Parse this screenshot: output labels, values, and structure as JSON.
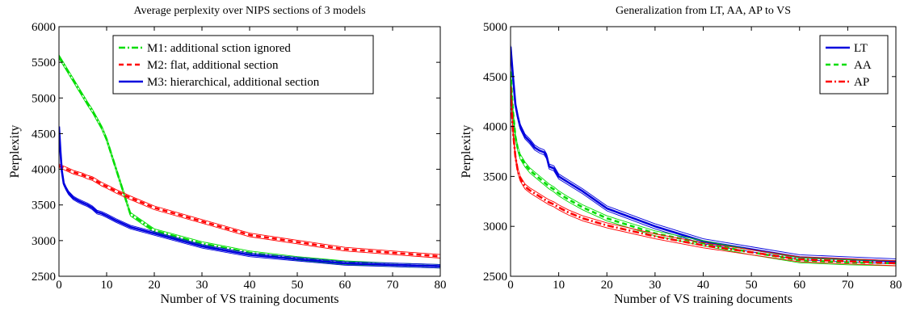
{
  "chart_data": [
    {
      "type": "line",
      "title": "Average perplexity over NIPS sections of 3 models",
      "xlabel": "Number of VS training documents",
      "ylabel": "Perplexity",
      "xlim": [
        0,
        80
      ],
      "ylim": [
        2500,
        6000
      ],
      "xticks": [
        0,
        10,
        20,
        30,
        40,
        50,
        60,
        70,
        80
      ],
      "yticks": [
        2500,
        3000,
        3500,
        4000,
        4500,
        5000,
        5500,
        6000
      ],
      "grid": false,
      "legend_position": "top-right",
      "series": [
        {
          "name": "M1: additional sction ignored",
          "color": "#00dd00",
          "style": "dashdot",
          "x": [
            0,
            1,
            2,
            3,
            4,
            5,
            6,
            7,
            8,
            9,
            10,
            12,
            15,
            20,
            30,
            40,
            50,
            60,
            70,
            80
          ],
          "y": [
            5580,
            5470,
            5360,
            5250,
            5140,
            5030,
            4920,
            4820,
            4700,
            4580,
            4420,
            4000,
            3370,
            3140,
            2960,
            2830,
            2750,
            2690,
            2660,
            2640
          ]
        },
        {
          "name": "M2: flat, additional section",
          "color": "#ff0000",
          "style": "dashed",
          "x": [
            0,
            1,
            2,
            3,
            4,
            5,
            6,
            7,
            8,
            9,
            10,
            12,
            15,
            20,
            30,
            40,
            50,
            60,
            70,
            80
          ],
          "y": [
            4050,
            4020,
            3990,
            3960,
            3940,
            3920,
            3890,
            3870,
            3830,
            3790,
            3760,
            3690,
            3600,
            3460,
            3270,
            3080,
            2980,
            2880,
            2830,
            2780
          ]
        },
        {
          "name": "M3: hierarchical, additional section",
          "color": "#0000dd",
          "style": "solid",
          "x": [
            0,
            0.3,
            0.6,
            1,
            1.5,
            2,
            3,
            4,
            5,
            6,
            7,
            8,
            9,
            10,
            12,
            15,
            20,
            30,
            40,
            50,
            60,
            70,
            80
          ],
          "y": [
            4600,
            4250,
            3980,
            3800,
            3730,
            3670,
            3600,
            3560,
            3530,
            3500,
            3460,
            3400,
            3380,
            3350,
            3280,
            3190,
            3100,
            2920,
            2800,
            2740,
            2680,
            2660,
            2640
          ]
        }
      ]
    },
    {
      "type": "line",
      "title": "Generalization from LT, AA, AP to VS",
      "xlabel": "Number of VS training documents",
      "ylabel": "Perplexity",
      "xlim": [
        0,
        80
      ],
      "ylim": [
        2500,
        5000
      ],
      "xticks": [
        0,
        10,
        20,
        30,
        40,
        50,
        60,
        70,
        80
      ],
      "yticks": [
        2500,
        3000,
        3500,
        4000,
        4500,
        5000
      ],
      "grid": false,
      "legend_position": "top-right",
      "series": [
        {
          "name": "LT",
          "color": "#0000dd",
          "style": "solid",
          "x": [
            0,
            0.5,
            1,
            1.5,
            2,
            3,
            4,
            5,
            6,
            7,
            7.5,
            8,
            9,
            10,
            12,
            15,
            20,
            30,
            40,
            50,
            60,
            70,
            80
          ],
          "y": [
            4800,
            4500,
            4220,
            4100,
            4000,
            3900,
            3850,
            3790,
            3760,
            3740,
            3700,
            3600,
            3580,
            3500,
            3440,
            3350,
            3180,
            3000,
            2850,
            2770,
            2690,
            2670,
            2650
          ]
        },
        {
          "name": "AA",
          "color": "#00dd00",
          "style": "dashed",
          "x": [
            0,
            0.5,
            1,
            1.5,
            2,
            3,
            4,
            5,
            6,
            7,
            8,
            9,
            10,
            12,
            15,
            20,
            30,
            40,
            50,
            60,
            70,
            80
          ],
          "y": [
            4550,
            4150,
            3900,
            3780,
            3700,
            3620,
            3560,
            3520,
            3480,
            3440,
            3400,
            3370,
            3330,
            3270,
            3190,
            3080,
            2930,
            2830,
            2740,
            2660,
            2640,
            2630
          ]
        },
        {
          "name": "AP",
          "color": "#ff0000",
          "style": "dashdot",
          "x": [
            0,
            0.5,
            1,
            1.5,
            2,
            3,
            4,
            5,
            6,
            7,
            8,
            9,
            10,
            12,
            15,
            20,
            30,
            40,
            50,
            60,
            70,
            80
          ],
          "y": [
            4400,
            3950,
            3700,
            3560,
            3480,
            3400,
            3360,
            3330,
            3300,
            3270,
            3240,
            3220,
            3190,
            3140,
            3080,
            3010,
            2900,
            2810,
            2740,
            2670,
            2650,
            2630
          ]
        }
      ]
    }
  ]
}
